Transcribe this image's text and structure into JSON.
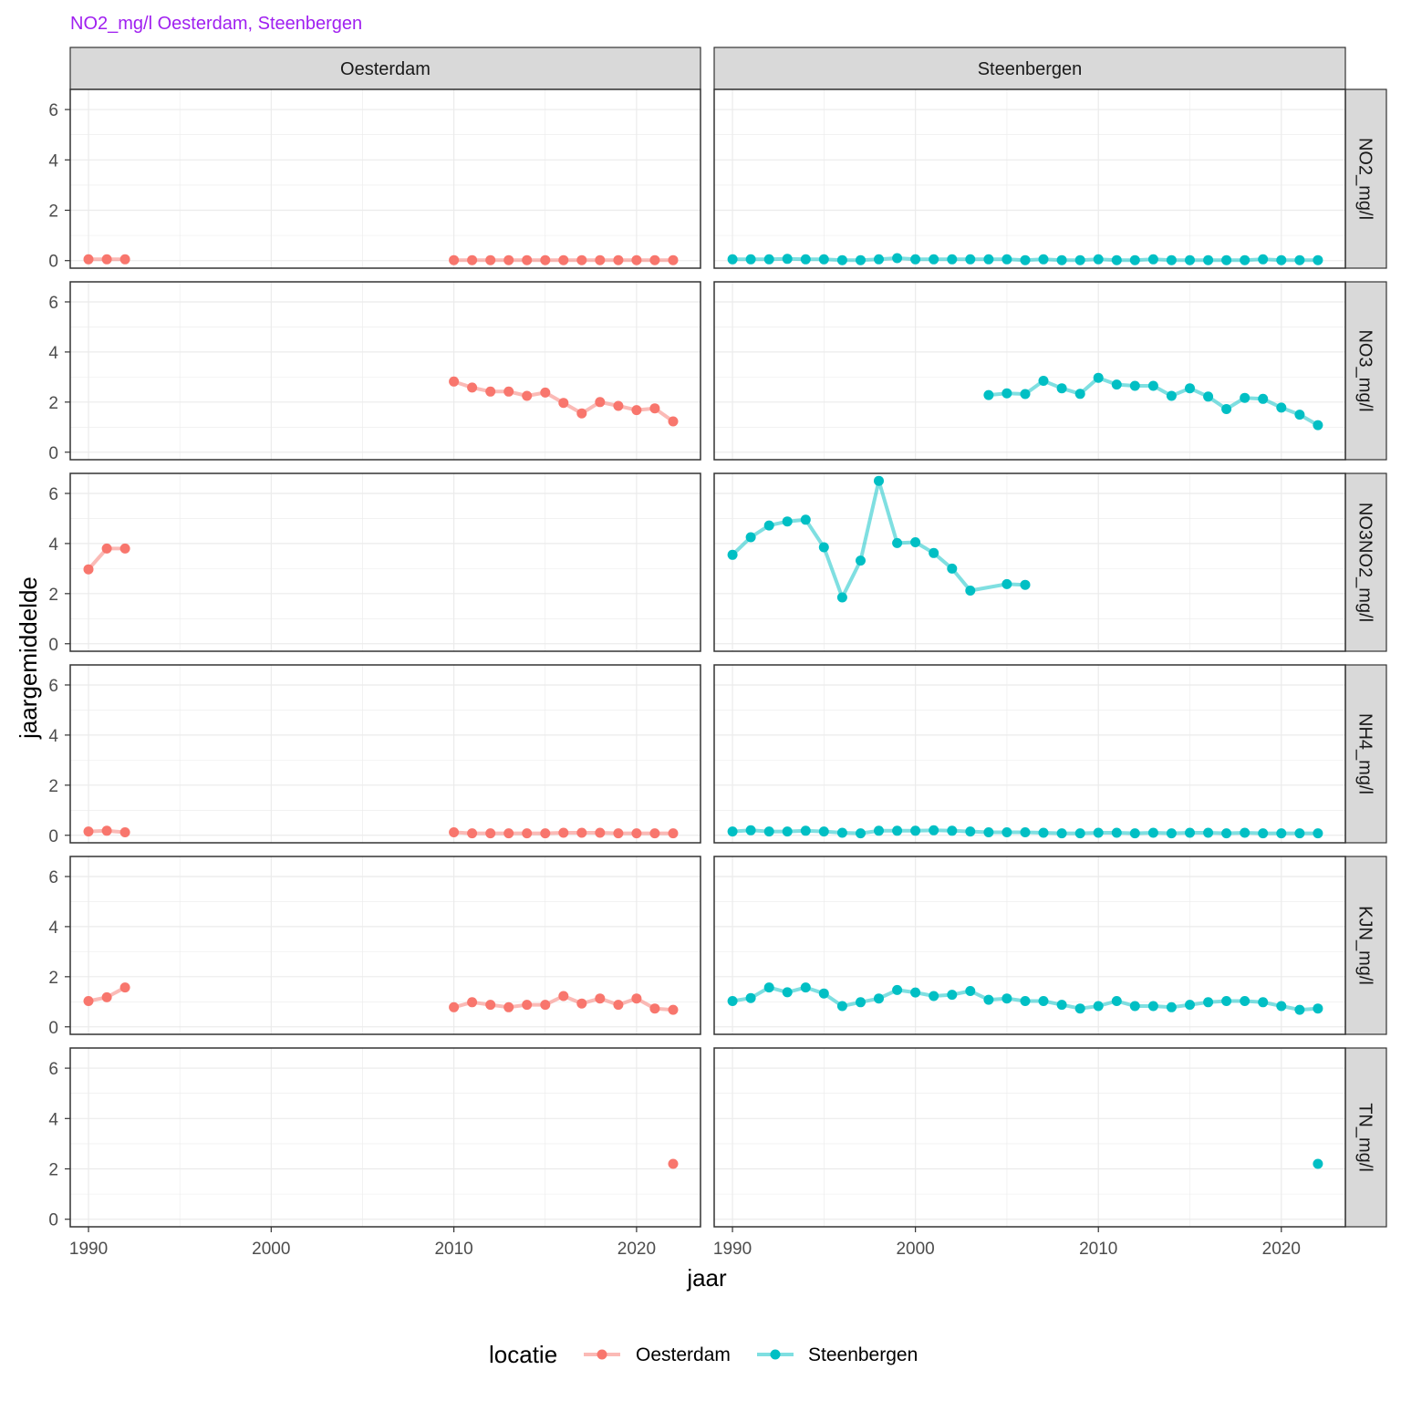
{
  "colors": {
    "title": "#a020f0",
    "Oesterdam": "#f8766d",
    "Steenbergen": "#00bfc4",
    "strip_fill": "#d9d9d9",
    "grid": "#ebebeb",
    "panel_border": "#333333"
  },
  "chart_data": {
    "type": "line",
    "title": "NO2_mg/l Oesterdam, Steenbergen",
    "xlabel": "jaar",
    "ylabel": "jaargemiddelde",
    "xlim": [
      1989,
      2023.5
    ],
    "ylim": [
      -0.3,
      6.8
    ],
    "x_ticks": [
      1990,
      2000,
      2010,
      2020
    ],
    "y_ticks": [
      0,
      2,
      4,
      6
    ],
    "columns": [
      "Oesterdam",
      "Steenbergen"
    ],
    "rows": [
      "NO2_mg/l",
      "NO3_mg/l",
      "NO3NO2_mg/l",
      "NH4_mg/l",
      "KJN_mg/l",
      "TN_mg/l"
    ],
    "legend": {
      "title": "locatie",
      "entries": [
        "Oesterdam",
        "Steenbergen"
      ]
    },
    "panels": [
      {
        "row": "NO2_mg/l",
        "col": "Oesterdam",
        "segments": [
          [
            [
              1990,
              0.05
            ],
            [
              1991,
              0.05
            ],
            [
              1992,
              0.05
            ]
          ],
          [
            [
              2010,
              0.02
            ],
            [
              2011,
              0.02
            ],
            [
              2012,
              0.02
            ],
            [
              2013,
              0.02
            ],
            [
              2014,
              0.02
            ],
            [
              2015,
              0.02
            ],
            [
              2016,
              0.02
            ],
            [
              2017,
              0.02
            ],
            [
              2018,
              0.02
            ],
            [
              2019,
              0.02
            ],
            [
              2020,
              0.02
            ],
            [
              2021,
              0.02
            ],
            [
              2022,
              0.02
            ]
          ]
        ]
      },
      {
        "row": "NO2_mg/l",
        "col": "Steenbergen",
        "segments": [
          [
            [
              1990,
              0.05
            ],
            [
              1991,
              0.05
            ],
            [
              1992,
              0.05
            ],
            [
              1993,
              0.07
            ],
            [
              1994,
              0.05
            ],
            [
              1995,
              0.05
            ],
            [
              1996,
              0.02
            ],
            [
              1997,
              0.02
            ],
            [
              1998,
              0.05
            ],
            [
              1999,
              0.1
            ],
            [
              2000,
              0.05
            ],
            [
              2001,
              0.05
            ],
            [
              2002,
              0.05
            ],
            [
              2003,
              0.05
            ],
            [
              2004,
              0.05
            ],
            [
              2005,
              0.05
            ],
            [
              2006,
              0.02
            ],
            [
              2007,
              0.05
            ],
            [
              2008,
              0.02
            ],
            [
              2009,
              0.02
            ],
            [
              2010,
              0.05
            ],
            [
              2011,
              0.02
            ],
            [
              2012,
              0.02
            ],
            [
              2013,
              0.05
            ],
            [
              2014,
              0.02
            ],
            [
              2015,
              0.02
            ],
            [
              2016,
              0.02
            ],
            [
              2017,
              0.02
            ],
            [
              2018,
              0.02
            ],
            [
              2019,
              0.05
            ],
            [
              2020,
              0.02
            ],
            [
              2021,
              0.02
            ],
            [
              2022,
              0.02
            ]
          ]
        ]
      },
      {
        "row": "NO3_mg/l",
        "col": "Oesterdam",
        "segments": [
          [
            [
              2010,
              2.82
            ],
            [
              2011,
              2.58
            ],
            [
              2012,
              2.42
            ],
            [
              2013,
              2.42
            ],
            [
              2014,
              2.25
            ],
            [
              2015,
              2.38
            ],
            [
              2016,
              1.97
            ],
            [
              2017,
              1.55
            ],
            [
              2018,
              2.0
            ],
            [
              2019,
              1.85
            ],
            [
              2020,
              1.68
            ],
            [
              2021,
              1.75
            ],
            [
              2022,
              1.23
            ]
          ]
        ]
      },
      {
        "row": "NO3_mg/l",
        "col": "Steenbergen",
        "segments": [
          [
            [
              2004,
              2.28
            ],
            [
              2005,
              2.35
            ],
            [
              2006,
              2.32
            ],
            [
              2007,
              2.85
            ],
            [
              2008,
              2.55
            ],
            [
              2009,
              2.33
            ],
            [
              2010,
              2.97
            ],
            [
              2011,
              2.7
            ],
            [
              2012,
              2.65
            ],
            [
              2013,
              2.65
            ],
            [
              2014,
              2.25
            ],
            [
              2015,
              2.55
            ],
            [
              2016,
              2.22
            ],
            [
              2017,
              1.72
            ],
            [
              2018,
              2.17
            ],
            [
              2019,
              2.13
            ],
            [
              2020,
              1.78
            ],
            [
              2021,
              1.5
            ],
            [
              2022,
              1.08
            ]
          ]
        ]
      },
      {
        "row": "NO3NO2_mg/l",
        "col": "Oesterdam",
        "segments": [
          [
            [
              1990,
              2.97
            ],
            [
              1991,
              3.8
            ],
            [
              1992,
              3.8
            ]
          ]
        ]
      },
      {
        "row": "NO3NO2_mg/l",
        "col": "Steenbergen",
        "segments": [
          [
            [
              1990,
              3.55
            ],
            [
              1991,
              4.25
            ],
            [
              1992,
              4.72
            ],
            [
              1993,
              4.88
            ],
            [
              1994,
              4.95
            ],
            [
              1995,
              3.85
            ],
            [
              1996,
              1.85
            ],
            [
              1997,
              3.32
            ],
            [
              1998,
              6.5
            ],
            [
              1999,
              4.02
            ],
            [
              2000,
              4.05
            ],
            [
              2001,
              3.62
            ],
            [
              2002,
              3.0
            ],
            [
              2003,
              2.12
            ],
            [
              2005,
              2.38
            ],
            [
              2006,
              2.35
            ]
          ]
        ]
      },
      {
        "row": "NH4_mg/l",
        "col": "Oesterdam",
        "segments": [
          [
            [
              1990,
              0.15
            ],
            [
              1991,
              0.18
            ],
            [
              1992,
              0.12
            ]
          ],
          [
            [
              2010,
              0.12
            ],
            [
              2011,
              0.08
            ],
            [
              2012,
              0.08
            ],
            [
              2013,
              0.08
            ],
            [
              2014,
              0.08
            ],
            [
              2015,
              0.08
            ],
            [
              2016,
              0.1
            ],
            [
              2017,
              0.1
            ],
            [
              2018,
              0.1
            ],
            [
              2019,
              0.08
            ],
            [
              2020,
              0.08
            ],
            [
              2021,
              0.08
            ],
            [
              2022,
              0.08
            ]
          ]
        ]
      },
      {
        "row": "NH4_mg/l",
        "col": "Steenbergen",
        "segments": [
          [
            [
              1990,
              0.15
            ],
            [
              1991,
              0.2
            ],
            [
              1992,
              0.15
            ],
            [
              1993,
              0.15
            ],
            [
              1994,
              0.18
            ],
            [
              1995,
              0.15
            ],
            [
              1996,
              0.1
            ],
            [
              1997,
              0.08
            ],
            [
              1998,
              0.18
            ],
            [
              1999,
              0.18
            ],
            [
              2000,
              0.18
            ],
            [
              2001,
              0.2
            ],
            [
              2002,
              0.18
            ],
            [
              2003,
              0.15
            ],
            [
              2004,
              0.12
            ],
            [
              2005,
              0.12
            ],
            [
              2006,
              0.12
            ],
            [
              2007,
              0.1
            ],
            [
              2008,
              0.08
            ],
            [
              2009,
              0.08
            ],
            [
              2010,
              0.1
            ],
            [
              2011,
              0.1
            ],
            [
              2012,
              0.08
            ],
            [
              2013,
              0.1
            ],
            [
              2014,
              0.08
            ],
            [
              2015,
              0.1
            ],
            [
              2016,
              0.1
            ],
            [
              2017,
              0.08
            ],
            [
              2018,
              0.1
            ],
            [
              2019,
              0.08
            ],
            [
              2020,
              0.08
            ],
            [
              2021,
              0.08
            ],
            [
              2022,
              0.08
            ]
          ]
        ]
      },
      {
        "row": "KJN_mg/l",
        "col": "Oesterdam",
        "segments": [
          [
            [
              1990,
              1.03
            ],
            [
              1991,
              1.18
            ],
            [
              1992,
              1.57
            ]
          ],
          [
            [
              2010,
              0.78
            ],
            [
              2011,
              0.98
            ],
            [
              2012,
              0.88
            ],
            [
              2013,
              0.78
            ],
            [
              2014,
              0.88
            ],
            [
              2015,
              0.88
            ],
            [
              2016,
              1.23
            ],
            [
              2017,
              0.93
            ],
            [
              2018,
              1.13
            ],
            [
              2019,
              0.88
            ],
            [
              2020,
              1.13
            ],
            [
              2021,
              0.73
            ],
            [
              2022,
              0.68
            ]
          ]
        ]
      },
      {
        "row": "KJN_mg/l",
        "col": "Steenbergen",
        "segments": [
          [
            [
              1990,
              1.03
            ],
            [
              1991,
              1.15
            ],
            [
              1992,
              1.57
            ],
            [
              1993,
              1.38
            ],
            [
              1994,
              1.57
            ],
            [
              1995,
              1.33
            ],
            [
              1996,
              0.83
            ],
            [
              1997,
              0.98
            ],
            [
              1998,
              1.13
            ],
            [
              1999,
              1.47
            ],
            [
              2000,
              1.37
            ],
            [
              2001,
              1.23
            ],
            [
              2002,
              1.28
            ],
            [
              2003,
              1.43
            ],
            [
              2004,
              1.08
            ],
            [
              2005,
              1.13
            ],
            [
              2006,
              1.03
            ],
            [
              2007,
              1.03
            ],
            [
              2008,
              0.88
            ],
            [
              2009,
              0.73
            ],
            [
              2010,
              0.83
            ],
            [
              2011,
              1.03
            ],
            [
              2012,
              0.83
            ],
            [
              2013,
              0.83
            ],
            [
              2014,
              0.78
            ],
            [
              2015,
              0.88
            ],
            [
              2016,
              0.98
            ],
            [
              2017,
              1.03
            ],
            [
              2018,
              1.03
            ],
            [
              2019,
              0.98
            ],
            [
              2020,
              0.83
            ],
            [
              2021,
              0.68
            ],
            [
              2022,
              0.73
            ]
          ]
        ]
      },
      {
        "row": "TN_mg/l",
        "col": "Oesterdam",
        "segments": [
          [
            [
              2022,
              2.2
            ]
          ]
        ]
      },
      {
        "row": "TN_mg/l",
        "col": "Steenbergen",
        "segments": [
          [
            [
              2022,
              2.2
            ]
          ]
        ]
      }
    ]
  }
}
